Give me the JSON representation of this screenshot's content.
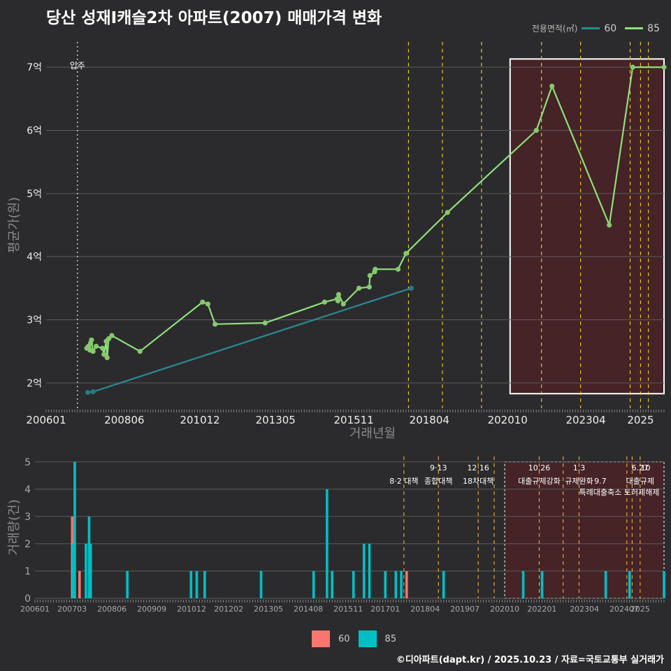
{
  "title": "당산 성재I캐슬2차 아파트(2007) 매매가격 변화",
  "legend_title": "전용면적(㎡)",
  "footer": "©디아파트(dapt.kr) / 2025.10.23 / 자료=국토교통부 실거래가",
  "colors": {
    "s60_line": "#2a8a93",
    "s85_line": "#90e07a",
    "s60_bar": "#f8766d",
    "s85_bar": "#00bfc4",
    "highlight": "#4a2226",
    "policy": "#e6c229"
  },
  "chart_data": [
    {
      "type": "line",
      "title": "당산 성재I캐슬2차 아파트(2007) 매매가격 변화",
      "xlabel": "거래년월",
      "ylabel": "평균가(원)",
      "x_range": [
        2006.0,
        2025.75
      ],
      "ylim": [
        1.6,
        7.4
      ],
      "yticks": [
        2,
        3,
        4,
        5,
        6,
        7
      ],
      "ytick_labels": [
        "2억",
        "3억",
        "4억",
        "5억",
        "6억",
        "7억"
      ],
      "xticks": [
        2006.0,
        2008.5,
        2010.917,
        2013.333,
        2015.833,
        2018.25,
        2020.75,
        2023.25,
        2025.0
      ],
      "xtick_labels": [
        "200601",
        "200806",
        "201012",
        "201305",
        "201511",
        "201804",
        "202010",
        "202304",
        "2025"
      ],
      "occupancy": {
        "x": 2007.0,
        "label": "입주"
      },
      "policy_lines": [
        2017.583,
        2018.667,
        2019.917,
        2021.833,
        2023.083,
        2024.667,
        2025.0,
        2025.25
      ],
      "highlight_range": [
        2020.83,
        2025.75,
        1.83,
        7.13
      ],
      "series": [
        {
          "name": "60",
          "points": [
            [
              2007.33,
              1.85
            ],
            [
              2007.5,
              1.86
            ],
            [
              2017.67,
              3.5
            ]
          ]
        },
        {
          "name": "85",
          "points": [
            [
              2007.3,
              2.55
            ],
            [
              2007.35,
              2.58
            ],
            [
              2007.4,
              2.52
            ],
            [
              2007.42,
              2.63
            ],
            [
              2007.45,
              2.68
            ],
            [
              2007.5,
              2.5
            ],
            [
              2007.6,
              2.58
            ],
            [
              2007.8,
              2.55
            ],
            [
              2007.85,
              2.45
            ],
            [
              2007.92,
              2.66
            ],
            [
              2007.95,
              2.4
            ],
            [
              2008.0,
              2.7
            ],
            [
              2008.1,
              2.75
            ],
            [
              2009.0,
              2.5
            ],
            [
              2011.0,
              3.28
            ],
            [
              2011.17,
              3.25
            ],
            [
              2011.4,
              2.93
            ],
            [
              2013.0,
              2.95
            ],
            [
              2014.9,
              3.28
            ],
            [
              2015.3,
              3.33
            ],
            [
              2015.33,
              3.3
            ],
            [
              2015.35,
              3.4
            ],
            [
              2015.5,
              3.25
            ],
            [
              2016.0,
              3.5
            ],
            [
              2016.33,
              3.52
            ],
            [
              2016.35,
              3.7
            ],
            [
              2016.5,
              3.76
            ],
            [
              2016.52,
              3.8
            ],
            [
              2017.25,
              3.8
            ],
            [
              2017.5,
              4.05
            ],
            [
              2018.83,
              4.7
            ],
            [
              2021.67,
              6.0
            ],
            [
              2022.17,
              6.7
            ],
            [
              2024.0,
              4.5
            ],
            [
              2024.75,
              7.0
            ],
            [
              2025.75,
              7.0
            ]
          ]
        }
      ]
    },
    {
      "type": "bar",
      "xlabel": "",
      "ylabel": "거래량(건)",
      "x_range": [
        2006.0,
        2025.75
      ],
      "ylim": [
        0,
        5.2
      ],
      "yticks": [
        0,
        1,
        2,
        3,
        4,
        5
      ],
      "ytick_labels": [
        "0",
        "1",
        "2",
        "3",
        "4",
        "5"
      ],
      "xticks": [
        2006.0,
        2007.167,
        2008.417,
        2009.667,
        2010.917,
        2012.083,
        2013.333,
        2014.583,
        2015.833,
        2017.0,
        2018.25,
        2019.5,
        2020.75,
        2021.917,
        2023.25,
        2024.5,
        2025.0
      ],
      "xtick_labels": [
        "200601",
        "200703",
        "200806",
        "200909",
        "201012",
        "201202",
        "201305",
        "201408",
        "201511",
        "201701",
        "201804",
        "201907",
        "202010",
        "202201",
        "202304",
        "202407",
        "2025"
      ],
      "highlight_range": [
        2020.75,
        2025.75,
        0,
        5
      ],
      "policy_lines": [
        2017.583,
        2018.667,
        2019.917,
        2020.417,
        2021.833,
        2022.583,
        2023.083,
        2024.583,
        2024.75,
        2025.0
      ],
      "annotations": [
        {
          "x": 2017.583,
          "row": 2,
          "text": "8·2 대책"
        },
        {
          "x": 2018.667,
          "row": 1,
          "text": "9·13"
        },
        {
          "x": 2018.667,
          "row": 2,
          "text": "종합대책"
        },
        {
          "x": 2019.917,
          "row": 1,
          "text": "12·16"
        },
        {
          "x": 2019.917,
          "row": 2,
          "text": "18차대책"
        },
        {
          "x": 2021.833,
          "row": 1,
          "text": "10.26"
        },
        {
          "x": 2021.833,
          "row": 2,
          "text": "대출규제강화"
        },
        {
          "x": 2023.083,
          "row": 1,
          "text": "1.3"
        },
        {
          "x": 2023.083,
          "row": 2,
          "text": "규제완화"
        },
        {
          "x": 2023.75,
          "row": 2,
          "text": "9.7"
        },
        {
          "x": 2023.75,
          "row": 3,
          "text": "특례대출축소"
        },
        {
          "x": 2025.0,
          "row": 1,
          "text": "6.27"
        },
        {
          "x": 2025.0,
          "row": 2,
          "text": "대출규제"
        },
        {
          "x": 2025.17,
          "row": 1,
          "text": "10"
        },
        {
          "x": 2025.05,
          "row": 3,
          "text": "토허제해제"
        }
      ],
      "series": [
        {
          "name": "60",
          "points": [
            [
              2007.17,
              3
            ],
            [
              2007.4,
              1
            ],
            [
              2017.67,
              1
            ]
          ]
        },
        {
          "name": "85",
          "points": [
            [
              2007.2,
              2
            ],
            [
              2007.25,
              5
            ],
            [
              2007.6,
              2
            ],
            [
              2007.7,
              3
            ],
            [
              2007.75,
              2
            ],
            [
              2008.9,
              1
            ],
            [
              2010.9,
              1
            ],
            [
              2011.08,
              1
            ],
            [
              2011.33,
              1
            ],
            [
              2013.1,
              1
            ],
            [
              2014.75,
              1
            ],
            [
              2015.17,
              4
            ],
            [
              2015.33,
              1
            ],
            [
              2016.0,
              1
            ],
            [
              2016.33,
              2
            ],
            [
              2016.5,
              2
            ],
            [
              2017.0,
              1
            ],
            [
              2017.33,
              1
            ],
            [
              2017.5,
              1
            ],
            [
              2018.83,
              1
            ],
            [
              2021.33,
              1
            ],
            [
              2021.92,
              1
            ],
            [
              2023.92,
              1
            ],
            [
              2024.67,
              1
            ],
            [
              2025.75,
              1
            ]
          ]
        }
      ]
    }
  ]
}
